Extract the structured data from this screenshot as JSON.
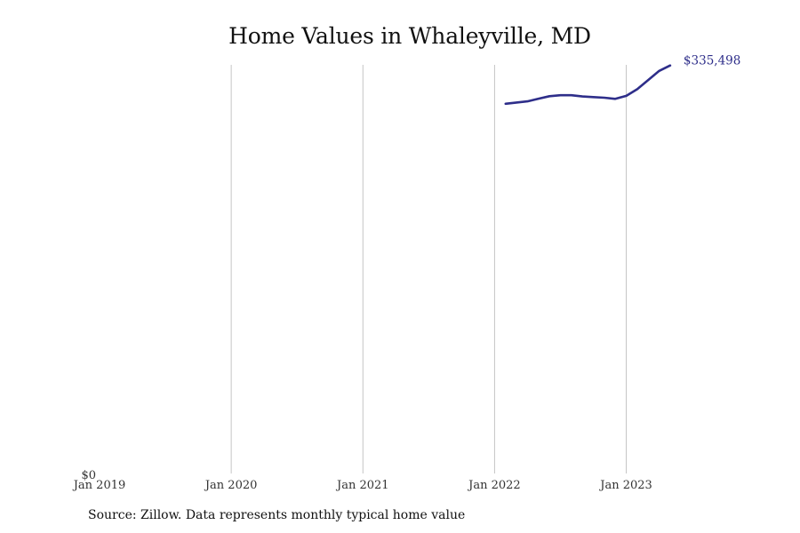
{
  "chart_data": {
    "type": "line",
    "title": "Home Values in Whaleyville, MD",
    "xlabel": "",
    "ylabel": "",
    "x_tick_labels": [
      "Jan 2019",
      "Jan 2020",
      "Jan 2021",
      "Jan 2022",
      "Jan 2023"
    ],
    "x_range": [
      "2019-01",
      "2023-11"
    ],
    "y_tick_labels": [
      "$0"
    ],
    "ylim": [
      0,
      336000
    ],
    "grid": "vertical",
    "legend": "none",
    "line_color": "#2e2e8a",
    "series": [
      {
        "x": [
          "2022-02",
          "2022-03",
          "2022-04",
          "2022-05",
          "2022-06",
          "2022-07",
          "2022-08",
          "2022-09",
          "2022-10",
          "2022-11",
          "2022-12",
          "2023-01",
          "2023-02",
          "2023-03",
          "2023-04",
          "2023-05"
        ],
        "values": [
          304000,
          305000,
          306000,
          308200,
          310200,
          311000,
          311000,
          310000,
          309500,
          309000,
          308000,
          310500,
          316000,
          323500,
          331000,
          335498
        ]
      }
    ],
    "end_label": "$335,498",
    "source": "Source: Zillow. Data represents monthly typical home value"
  }
}
